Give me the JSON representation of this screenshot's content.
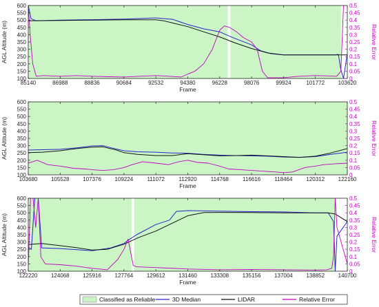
{
  "chart_data": [
    {
      "type": "line",
      "xlabel": "Frame",
      "ylabel": "AGL Altitude (m)",
      "y2label": "Relative Error",
      "xlim": [
        85140,
        103620
      ],
      "xticks": [
        85140,
        86988,
        88836,
        90684,
        92532,
        94380,
        96228,
        98076,
        99924,
        101772,
        103620
      ],
      "ylim": [
        100,
        600
      ],
      "yticks": [
        100,
        150,
        200,
        250,
        300,
        350,
        400,
        450,
        500,
        550,
        600
      ],
      "y2lim": [
        0,
        0.5
      ],
      "y2ticks": [
        0,
        0.05,
        0.1,
        0.15,
        0.2,
        0.25,
        0.3,
        0.35,
        0.4,
        0.45,
        0.5
      ],
      "reliable_spans": [
        [
          85150,
          96700
        ],
        [
          96850,
          103250
        ]
      ],
      "series": [
        {
          "name": "3D Median",
          "color": "#2424c8",
          "x": [
            85140,
            85300,
            85600,
            86988,
            88836,
            90684,
            92532,
            93500,
            94380,
            95300,
            96228,
            96600,
            97100,
            98076,
            98600,
            99200,
            99924,
            101772,
            102900,
            103100,
            103250,
            103400,
            103620
          ],
          "y": [
            600,
            510,
            495,
            500,
            503,
            507,
            515,
            505,
            470,
            440,
            420,
            400,
            375,
            330,
            290,
            270,
            262,
            262,
            262,
            265,
            160,
            100,
            270
          ]
        },
        {
          "name": "LIDAR",
          "color": "#111111",
          "x": [
            85140,
            85600,
            86988,
            88836,
            90684,
            92532,
            93000,
            94380,
            95300,
            96228,
            97100,
            98076,
            99000,
            99924,
            101772,
            103620
          ],
          "y": [
            495,
            496,
            497,
            500,
            502,
            502,
            495,
            455,
            420,
            385,
            345,
            305,
            275,
            262,
            262,
            262
          ]
        },
        {
          "name": "Relative Error",
          "color": "#c000c0",
          "x": [
            85140,
            85250,
            85400,
            85600,
            86000,
            86988,
            87900,
            88836,
            89800,
            90684,
            91600,
            92532,
            93300,
            94000,
            94380,
            94800,
            95300,
            95800,
            96228,
            96500,
            96800,
            97200,
            97600,
            98076,
            98400,
            98700,
            99000,
            99924,
            100800,
            101772,
            102400,
            103000,
            103250,
            103400,
            103620
          ],
          "y": [
            0.5,
            0.3,
            0.1,
            0.015,
            0.02,
            0.015,
            0.02,
            0.015,
            0.012,
            0.01,
            0.015,
            0.02,
            0.015,
            0.01,
            0.03,
            0.05,
            0.1,
            0.2,
            0.33,
            0.36,
            0.35,
            0.32,
            0.28,
            0.25,
            0.2,
            0.05,
            0.005,
            0.005,
            0.015,
            0.02,
            0.018,
            0.015,
            0.05,
            0.5,
            0.5
          ]
        }
      ]
    },
    {
      "type": "line",
      "xlabel": "Frame",
      "ylabel": "AGL Altitude (m)",
      "y2label": "Relative Error",
      "xlim": [
        103680,
        122160
      ],
      "xticks": [
        103680,
        105528,
        107376,
        109224,
        111072,
        112920,
        114768,
        116616,
        118464,
        120312,
        122160
      ],
      "ylim": [
        100,
        600
      ],
      "yticks": [
        100,
        150,
        200,
        250,
        300,
        350,
        400,
        450,
        500,
        550,
        600
      ],
      "y2lim": [
        0,
        0.5
      ],
      "y2ticks": [
        0,
        0.05,
        0.1,
        0.15,
        0.2,
        0.25,
        0.3,
        0.35,
        0.4,
        0.45,
        0.5
      ],
      "reliable_spans": [
        [
          103680,
          122160
        ]
      ],
      "series": [
        {
          "name": "3D Median",
          "color": "#2424c8",
          "x": [
            103680,
            104500,
            105528,
            106500,
            107376,
            108000,
            108500,
            109224,
            110000,
            111072,
            112000,
            112920,
            113800,
            114768,
            115700,
            116616,
            117500,
            118464,
            119400,
            120312,
            121200,
            122160
          ],
          "y": [
            270,
            272,
            275,
            285,
            298,
            300,
            285,
            265,
            258,
            255,
            250,
            248,
            240,
            235,
            232,
            230,
            228,
            222,
            220,
            225,
            240,
            255
          ]
        },
        {
          "name": "LIDAR",
          "color": "#111111",
          "x": [
            103680,
            104500,
            105528,
            106500,
            107376,
            108000,
            108800,
            109224,
            110000,
            111072,
            112000,
            112920,
            113800,
            114768,
            115700,
            116616,
            117500,
            118464,
            119400,
            120312,
            121200,
            122160
          ],
          "y": [
            252,
            255,
            265,
            280,
            290,
            292,
            270,
            252,
            240,
            232,
            232,
            245,
            238,
            230,
            232,
            235,
            230,
            225,
            220,
            228,
            250,
            280
          ]
        },
        {
          "name": "Relative Error",
          "color": "#c000c0",
          "x": [
            103680,
            104200,
            104800,
            105528,
            106300,
            107000,
            107376,
            108000,
            108600,
            109224,
            109700,
            110300,
            111072,
            111800,
            112400,
            112920,
            113500,
            114100,
            114768,
            115300,
            116000,
            116616,
            117300,
            118000,
            118464,
            119000,
            119700,
            120312,
            120800,
            121400,
            122160
          ],
          "y": [
            0.08,
            0.1,
            0.07,
            0.06,
            0.045,
            0.04,
            0.035,
            0.03,
            0.035,
            0.05,
            0.07,
            0.09,
            0.08,
            0.07,
            0.09,
            0.1,
            0.085,
            0.08,
            0.06,
            0.04,
            0.035,
            0.03,
            0.025,
            0.02,
            0.015,
            0.02,
            0.05,
            0.06,
            0.07,
            0.075,
            0.08
          ]
        }
      ]
    },
    {
      "type": "line",
      "xlabel": "Frame",
      "ylabel": "AGL Altitude (m)",
      "y2label": "Relative Error",
      "xlim": [
        122220,
        140700
      ],
      "xticks": [
        122220,
        124068,
        125916,
        127764,
        129612,
        131460,
        133308,
        135156,
        137004,
        138852,
        140700
      ],
      "ylim": [
        100,
        600
      ],
      "yticks": [
        100,
        150,
        200,
        250,
        300,
        350,
        400,
        450,
        500,
        550,
        600
      ],
      "y2lim": [
        0,
        0.5
      ],
      "y2ticks": [
        0,
        0.05,
        0.1,
        0.15,
        0.2,
        0.25,
        0.3,
        0.35,
        0.4,
        0.45,
        0.5
      ],
      "reliable_spans": [
        [
          122250,
          128200
        ],
        [
          128350,
          140000
        ]
      ],
      "series": [
        {
          "name": "3D Median",
          "color": "#2424c8",
          "x": [
            122220,
            122400,
            122600,
            122800,
            123000,
            124068,
            125916,
            127000,
            127764,
            128100,
            128500,
            129612,
            130400,
            130800,
            131460,
            133308,
            135156,
            137004,
            138852,
            139600,
            139900,
            140000,
            140100,
            140700
          ],
          "y": [
            265,
            250,
            600,
            600,
            260,
            255,
            240,
            260,
            290,
            320,
            350,
            420,
            450,
            510,
            515,
            512,
            508,
            506,
            500,
            500,
            440,
            100,
            340,
            440
          ]
        },
        {
          "name": "LIDAR",
          "color": "#111111",
          "x": [
            122220,
            123000,
            124068,
            125000,
            125916,
            126800,
            127764,
            128600,
            129612,
            130400,
            131460,
            132400,
            133308,
            135156,
            137004,
            138852,
            139600,
            140000,
            140700
          ],
          "y": [
            283,
            290,
            275,
            262,
            245,
            250,
            285,
            330,
            375,
            420,
            480,
            502,
            503,
            502,
            500,
            500,
            500,
            492,
            440
          ]
        },
        {
          "name": "Relative Error",
          "color": "#c000c0",
          "x": [
            122220,
            122350,
            122500,
            122650,
            122800,
            122950,
            123200,
            124068,
            125000,
            125916,
            126800,
            127400,
            127764,
            128000,
            128150,
            128300,
            128500,
            129612,
            131460,
            133308,
            135156,
            137004,
            138852,
            139500,
            139800,
            139900,
            140000,
            140100,
            140700
          ],
          "y": [
            0.03,
            0.5,
            0.5,
            0.3,
            0.5,
            0.1,
            0.05,
            0.045,
            0.035,
            0.02,
            0.01,
            0.08,
            0.15,
            0.22,
            0.13,
            0.04,
            0.03,
            0.025,
            0.015,
            0.01,
            0.012,
            0.01,
            0.008,
            0.01,
            0.02,
            0.1,
            0.5,
            0.3,
            0.05
          ]
        }
      ]
    }
  ],
  "legend": {
    "position": "bottom-center",
    "items": [
      {
        "label": "Classified as Reliable",
        "kind": "patch",
        "color": "#ccf5c6"
      },
      {
        "label": "3D Median",
        "kind": "line",
        "color": "#2424c8"
      },
      {
        "label": "LIDAR",
        "kind": "line",
        "color": "#111111"
      },
      {
        "label": "Relative Error",
        "kind": "line",
        "color": "#c000c0"
      }
    ]
  },
  "colors": {
    "reliable_fill": "#ccf5c6",
    "axis": "#222222",
    "right_axis": "#c000c0"
  }
}
